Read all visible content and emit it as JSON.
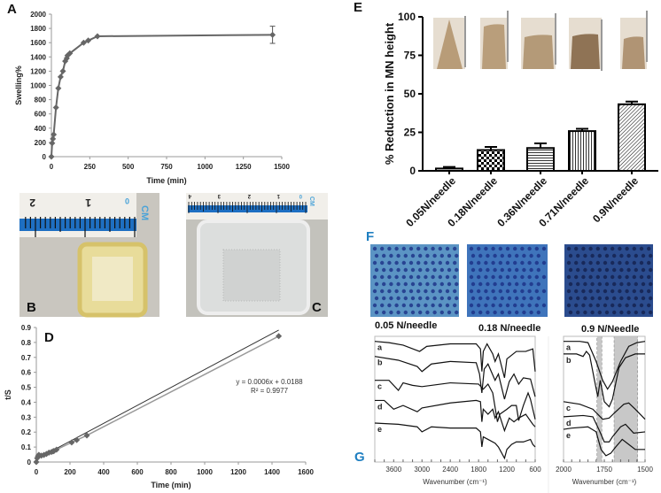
{
  "panels": {
    "A": "A",
    "B": "B",
    "C": "C",
    "D": "D",
    "E": "E",
    "F": "F",
    "G": "G"
  },
  "photos": {
    "ruler_unit": "CM",
    "ruler_b_marks": [
      "2",
      "1",
      "0"
    ],
    "ruler_c_marks": [
      "4",
      "3",
      "2",
      "1",
      "0"
    ]
  },
  "colors": {
    "series": "#666666",
    "blue_label": "#1f7fc1",
    "band": "#c8c8c8",
    "tan": "#c9ad85"
  },
  "chart_data": [
    {
      "id": "A",
      "type": "line",
      "title": "",
      "xlabel": "Time (min)",
      "ylabel": "Swelling%",
      "xlim": [
        0,
        1500
      ],
      "ylim": [
        0,
        2000
      ],
      "xticks": [
        0,
        250,
        500,
        750,
        1000,
        1250,
        1500
      ],
      "yticks": [
        0,
        200,
        400,
        600,
        800,
        1000,
        1200,
        1400,
        1600,
        1800,
        2000
      ],
      "x": [
        0,
        5,
        10,
        15,
        30,
        45,
        60,
        75,
        90,
        100,
        105,
        120,
        210,
        240,
        300,
        1440
      ],
      "y": [
        0,
        190,
        250,
        310,
        690,
        960,
        1120,
        1200,
        1340,
        1380,
        1420,
        1450,
        1600,
        1630,
        1690,
        1710
      ],
      "error": [
        0,
        0,
        0,
        0,
        0,
        0,
        0,
        0,
        0,
        0,
        0,
        0,
        0,
        0,
        0,
        120
      ]
    },
    {
      "id": "D",
      "type": "scatter",
      "title": "",
      "xlabel": "Time (min)",
      "ylabel": "t/S",
      "xlim": [
        0,
        1600
      ],
      "ylim": [
        0,
        0.9
      ],
      "xticks": [
        0,
        200,
        400,
        600,
        800,
        1000,
        1200,
        1400,
        1600
      ],
      "yticks": [
        "0",
        "0.1",
        "0.2",
        "0.3",
        "0.4",
        "0.5",
        "0.6",
        "0.7",
        "0.8",
        "0.9"
      ],
      "x": [
        0,
        5,
        10,
        15,
        30,
        45,
        60,
        75,
        90,
        100,
        105,
        120,
        210,
        240,
        300,
        1440
      ],
      "y": [
        0,
        0.026,
        0.04,
        0.048,
        0.043,
        0.047,
        0.054,
        0.063,
        0.067,
        0.072,
        0.074,
        0.083,
        0.131,
        0.147,
        0.178,
        0.842
      ],
      "fit": {
        "slope": 0.0006,
        "intercept": 0.0188
      },
      "equation": "y = 0.0006x + 0.0188",
      "r2": "R² = 0.9977"
    },
    {
      "id": "E",
      "type": "bar",
      "title": "",
      "ylabel": "% Reduction in MN height",
      "ylim": [
        0,
        100
      ],
      "yticks": [
        0,
        25,
        50,
        75,
        100
      ],
      "categories": [
        "0.05N/needle",
        "0.18N/needle",
        "0.36N/needle",
        "0.71N/needle",
        "0.9N/needle"
      ],
      "values": [
        1.5,
        13.5,
        14.8,
        25.8,
        43.2
      ],
      "error": [
        1.0,
        2.0,
        3.0,
        1.5,
        1.8
      ],
      "patterns": [
        "dots",
        "checker",
        "horizontal",
        "vertical",
        "diagonal"
      ]
    },
    {
      "id": "G_full",
      "type": "line",
      "xlabel": "Wavenumber (cm⁻¹)",
      "xlim": [
        4000,
        600
      ],
      "xticks": [
        3600,
        3000,
        2400,
        1800,
        1200,
        600
      ],
      "series": [
        {
          "name": "a",
          "points": [
            [
              4000,
              4
            ],
            [
              3700,
              5
            ],
            [
              3400,
              7
            ],
            [
              3050,
              12
            ],
            [
              2900,
              8
            ],
            [
              2400,
              6
            ],
            [
              1850,
              6
            ],
            [
              1760,
              10
            ],
            [
              1730,
              28
            ],
            [
              1700,
              12
            ],
            [
              1620,
              6
            ],
            [
              1500,
              14
            ],
            [
              1450,
              20
            ],
            [
              1380,
              14
            ],
            [
              1250,
              33
            ],
            [
              1200,
              18
            ],
            [
              1100,
              15
            ],
            [
              1000,
              12
            ],
            [
              800,
              12
            ],
            [
              650,
              10
            ],
            [
              600,
              28
            ]
          ]
        },
        {
          "name": "b",
          "points": [
            [
              4000,
              16
            ],
            [
              3500,
              19
            ],
            [
              3100,
              24
            ],
            [
              3000,
              28
            ],
            [
              2800,
              22
            ],
            [
              2400,
              20
            ],
            [
              1850,
              21
            ],
            [
              1780,
              30
            ],
            [
              1730,
              45
            ],
            [
              1680,
              26
            ],
            [
              1600,
              22
            ],
            [
              1450,
              35
            ],
            [
              1380,
              30
            ],
            [
              1250,
              50
            ],
            [
              1150,
              36
            ],
            [
              1050,
              30
            ],
            [
              950,
              38
            ],
            [
              850,
              33
            ],
            [
              700,
              34
            ],
            [
              600,
              48
            ]
          ]
        },
        {
          "name": "c",
          "points": [
            [
              4000,
              35
            ],
            [
              3700,
              35
            ],
            [
              3500,
              43
            ],
            [
              3400,
              37
            ],
            [
              3200,
              39
            ],
            [
              3000,
              40
            ],
            [
              2400,
              37
            ],
            [
              1800,
              38
            ],
            [
              1700,
              42
            ],
            [
              1600,
              38
            ],
            [
              1500,
              45
            ],
            [
              1400,
              68
            ],
            [
              1350,
              62
            ],
            [
              1200,
              58
            ],
            [
              1100,
              55
            ],
            [
              1000,
              55
            ],
            [
              950,
              67
            ],
            [
              850,
              55
            ],
            [
              750,
              45
            ],
            [
              700,
              50
            ],
            [
              600,
              66
            ]
          ]
        },
        {
          "name": "d",
          "points": [
            [
              4000,
              51
            ],
            [
              3800,
              51
            ],
            [
              3600,
              58
            ],
            [
              3400,
              55
            ],
            [
              3100,
              60
            ],
            [
              3000,
              57
            ],
            [
              2400,
              53
            ],
            [
              1850,
              51
            ],
            [
              1760,
              52
            ],
            [
              1730,
              68
            ],
            [
              1700,
              58
            ],
            [
              1600,
              62
            ],
            [
              1500,
              58
            ],
            [
              1450,
              65
            ],
            [
              1380,
              60
            ],
            [
              1250,
              75
            ],
            [
              1150,
              65
            ],
            [
              1050,
              68
            ],
            [
              950,
              65
            ],
            [
              800,
              62
            ],
            [
              650,
              70
            ],
            [
              600,
              72
            ]
          ]
        },
        {
          "name": "e",
          "points": [
            [
              4000,
              69
            ],
            [
              3500,
              70
            ],
            [
              3100,
              72
            ],
            [
              3000,
              76
            ],
            [
              2800,
              72
            ],
            [
              2400,
              73
            ],
            [
              1850,
              73
            ],
            [
              1760,
              76
            ],
            [
              1730,
              88
            ],
            [
              1700,
              80
            ],
            [
              1600,
              82
            ],
            [
              1450,
              85
            ],
            [
              1380,
              88
            ],
            [
              1250,
              97
            ],
            [
              1200,
              90
            ],
            [
              1100,
              86
            ],
            [
              1000,
              84
            ],
            [
              850,
              84
            ],
            [
              700,
              82
            ],
            [
              650,
              86
            ],
            [
              600,
              88
            ]
          ]
        }
      ]
    },
    {
      "id": "G_zoom",
      "type": "line",
      "xlabel": "Wavenumber (cm⁻¹)",
      "xlim": [
        2000,
        1500
      ],
      "xticks": [
        2000,
        1750,
        1500
      ],
      "bands": [
        [
          1795,
          1765
        ],
        [
          1690,
          1545
        ]
      ],
      "series": [
        {
          "name": "a",
          "points": [
            [
              2000,
              4
            ],
            [
              1900,
              4
            ],
            [
              1850,
              5
            ],
            [
              1800,
              20
            ],
            [
              1760,
              35
            ],
            [
              1730,
              42
            ],
            [
              1700,
              36
            ],
            [
              1650,
              20
            ],
            [
              1600,
              8
            ],
            [
              1550,
              5
            ],
            [
              1500,
              4
            ]
          ]
        },
        {
          "name": "b",
          "points": [
            [
              2000,
              14
            ],
            [
              1920,
              14
            ],
            [
              1880,
              16
            ],
            [
              1860,
              12
            ],
            [
              1840,
              15
            ],
            [
              1810,
              35
            ],
            [
              1790,
              48
            ],
            [
              1775,
              35
            ],
            [
              1750,
              52
            ],
            [
              1720,
              56
            ],
            [
              1700,
              50
            ],
            [
              1660,
              25
            ],
            [
              1620,
              17
            ],
            [
              1560,
              14
            ],
            [
              1500,
              14
            ]
          ]
        },
        {
          "name": "c",
          "points": [
            [
              2000,
              52
            ],
            [
              1900,
              54
            ],
            [
              1820,
              58
            ],
            [
              1760,
              66
            ],
            [
              1720,
              65
            ],
            [
              1680,
              60
            ],
            [
              1630,
              54
            ],
            [
              1600,
              53
            ],
            [
              1560,
              58
            ],
            [
              1500,
              66
            ]
          ]
        },
        {
          "name": "d",
          "points": [
            [
              2000,
              64
            ],
            [
              1880,
              63
            ],
            [
              1820,
              64
            ],
            [
              1780,
              75
            ],
            [
              1750,
              84
            ],
            [
              1720,
              84
            ],
            [
              1700,
              80
            ],
            [
              1650,
              72
            ],
            [
              1620,
              70
            ],
            [
              1570,
              77
            ],
            [
              1500,
              76
            ]
          ]
        },
        {
          "name": "e",
          "points": [
            [
              2000,
              74
            ],
            [
              1950,
              73
            ],
            [
              1850,
              72
            ],
            [
              1800,
              76
            ],
            [
              1770,
              90
            ],
            [
              1740,
              95
            ],
            [
              1710,
              93
            ],
            [
              1680,
              88
            ],
            [
              1640,
              82
            ],
            [
              1600,
              86
            ],
            [
              1560,
              90
            ],
            [
              1500,
              90
            ]
          ]
        }
      ]
    }
  ],
  "F": {
    "labels": [
      "0.05 N/needle",
      "0.18 N/needle",
      "0.9 N/Needle"
    ]
  }
}
